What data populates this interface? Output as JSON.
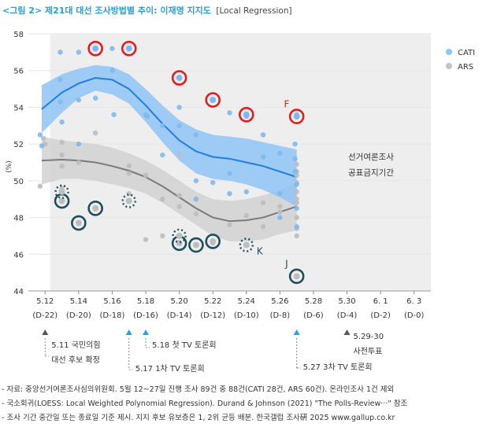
{
  "title": {
    "main": "<그림 2> 제21대 대선 조사방법별 추이: 이재명 지지도",
    "sub": "[Local Regression]"
  },
  "chart_data": {
    "type": "scatter",
    "ylabel": "(%)",
    "ylim": [
      44,
      58
    ],
    "yticks": [
      44,
      46,
      48,
      50,
      52,
      54,
      56,
      58
    ],
    "x_dates": [
      "5.12",
      "5.14",
      "5.16",
      "5.18",
      "5.20",
      "5.22",
      "5.24",
      "5.26",
      "5.28",
      "5.30",
      "6. 1",
      "6. 3"
    ],
    "x_dday": [
      "(D-22)",
      "(D-20)",
      "(D-18)",
      "(D-16)",
      "(D-14)",
      "(D-12)",
      "(D-10)",
      "(D-8)",
      "(D-6)",
      "(D-4)",
      "(D-2)",
      "(D-0)"
    ],
    "blackout": {
      "start_day": 12.3,
      "end_day": 35,
      "label_line1": "선거여론조사",
      "label_line2": "공표금지기간"
    },
    "legend": [
      {
        "name": "CATI",
        "color": "#8ec5f5"
      },
      {
        "name": "ARS",
        "color": "#c4c4c4"
      }
    ],
    "colors": {
      "cati_band": "#8fc3f7",
      "cati_line": "#1e7fe0",
      "ars_band": "#cfcfcf",
      "ars_line": "#7a7a7a",
      "red_circle": "#e11d1d",
      "teal_circle": "#1d4f5f"
    },
    "series": [
      {
        "name": "CATI",
        "points": [
          [
            11.7,
            52.5
          ],
          [
            11.8,
            51.9
          ],
          [
            12.9,
            57.0
          ],
          [
            12.9,
            55.5
          ],
          [
            12.9,
            54.3
          ],
          [
            13.0,
            53.2
          ],
          [
            14.0,
            57.0
          ],
          [
            14.0,
            54.4
          ],
          [
            14.0,
            52.0
          ],
          [
            15.0,
            57.2
          ],
          [
            15.0,
            54.5
          ],
          [
            16.0,
            57.2
          ],
          [
            16.0,
            56.0
          ],
          [
            16.1,
            53.6
          ],
          [
            18.0,
            53.6
          ],
          [
            18.1,
            53.5
          ],
          [
            19.0,
            53.0
          ],
          [
            19.0,
            51.4
          ],
          [
            20.0,
            55.6
          ],
          [
            20.0,
            54.0
          ],
          [
            20.0,
            53.0
          ],
          [
            21.0,
            52.5
          ],
          [
            21.0,
            50.0
          ],
          [
            21.0,
            49.0
          ],
          [
            22.0,
            54.4
          ],
          [
            22.0,
            49.9
          ],
          [
            23.0,
            53.7
          ],
          [
            23.0,
            50.4
          ],
          [
            23.0,
            49.3
          ],
          [
            24.0,
            53.6
          ],
          [
            24.0,
            53.5
          ],
          [
            24.0,
            49.4
          ],
          [
            25.0,
            52.5
          ],
          [
            25.0,
            51.3
          ],
          [
            26.0,
            51.5
          ],
          [
            26.0,
            49.3
          ],
          [
            26.0,
            48.0
          ],
          [
            26.9,
            52.0
          ],
          [
            26.9,
            51.2
          ],
          [
            26.9,
            50.5
          ],
          [
            27.0,
            53.6
          ],
          [
            27.0,
            49.8
          ],
          [
            27.0,
            48.5
          ],
          [
            27.0,
            47.5
          ]
        ],
        "smooth": [
          [
            11.8,
            53.9
          ],
          [
            13,
            54.8
          ],
          [
            14,
            55.3
          ],
          [
            15,
            55.6
          ],
          [
            16,
            55.5
          ],
          [
            17,
            55.0
          ],
          [
            18,
            54.1
          ],
          [
            19,
            53.1
          ],
          [
            20,
            52.2
          ],
          [
            21,
            51.6
          ],
          [
            22,
            51.3
          ],
          [
            23,
            51.2
          ],
          [
            24,
            51.0
          ],
          [
            25,
            50.8
          ],
          [
            26,
            50.5
          ],
          [
            27,
            50.2
          ]
        ],
        "band_upper": [
          [
            11.8,
            55.2
          ],
          [
            13,
            55.8
          ],
          [
            14,
            56.1
          ],
          [
            15,
            56.3
          ],
          [
            16,
            56.2
          ],
          [
            17,
            55.8
          ],
          [
            18,
            55.0
          ],
          [
            19,
            54.1
          ],
          [
            20,
            53.3
          ],
          [
            21,
            52.8
          ],
          [
            22,
            52.5
          ],
          [
            23,
            52.4
          ],
          [
            24,
            52.3
          ],
          [
            25,
            52.1
          ],
          [
            26,
            51.9
          ],
          [
            27,
            51.7
          ]
        ],
        "band_lower": [
          [
            11.8,
            52.6
          ],
          [
            13,
            53.7
          ],
          [
            14,
            54.5
          ],
          [
            15,
            54.9
          ],
          [
            16,
            54.7
          ],
          [
            17,
            54.2
          ],
          [
            18,
            53.2
          ],
          [
            19,
            52.1
          ],
          [
            20,
            51.1
          ],
          [
            21,
            50.4
          ],
          [
            22,
            50.1
          ],
          [
            23,
            50.0
          ],
          [
            24,
            49.8
          ],
          [
            25,
            49.5
          ],
          [
            26,
            49.1
          ],
          [
            27,
            48.6
          ]
        ]
      },
      {
        "name": "ARS",
        "points": [
          [
            11.7,
            49.7
          ],
          [
            11.9,
            52.3
          ],
          [
            12.0,
            52.0
          ],
          [
            13.0,
            52.1
          ],
          [
            13.0,
            51.4
          ],
          [
            13.0,
            50.8
          ],
          [
            13.0,
            49.6
          ],
          [
            13.0,
            49.3
          ],
          [
            14.0,
            51.0
          ],
          [
            15.0,
            52.6
          ],
          [
            15.0,
            48.5
          ],
          [
            17.0,
            50.8
          ],
          [
            17.0,
            50.4
          ],
          [
            17.0,
            49.3
          ],
          [
            18.0,
            50.3
          ],
          [
            18.0,
            46.8
          ],
          [
            19.0,
            47.0
          ],
          [
            19.0,
            49.0
          ],
          [
            20.0,
            51.4
          ],
          [
            20.0,
            49.2
          ],
          [
            20.0,
            48.6
          ],
          [
            20.0,
            47.0
          ],
          [
            20.0,
            46.6
          ],
          [
            21.0,
            46.5
          ],
          [
            21.0,
            48.2
          ],
          [
            22.0,
            46.6
          ],
          [
            23.0,
            47.6
          ],
          [
            24.0,
            48.1
          ],
          [
            24.0,
            46.5
          ],
          [
            25.0,
            47.5
          ],
          [
            25.0,
            48.8
          ],
          [
            26.0,
            48.6
          ],
          [
            26.0,
            48.3
          ],
          [
            27.0,
            50.9
          ],
          [
            27.0,
            50.5
          ],
          [
            27.0,
            50.3
          ],
          [
            27.0,
            49.9
          ],
          [
            27.0,
            49.4
          ],
          [
            27.0,
            49.0
          ],
          [
            27.0,
            48.8
          ],
          [
            27.0,
            48.0
          ],
          [
            27.0,
            47.4
          ],
          [
            27.0,
            47.0
          ]
        ],
        "smooth": [
          [
            11.8,
            51.1
          ],
          [
            13,
            51.15
          ],
          [
            14,
            51.1
          ],
          [
            15,
            51.0
          ],
          [
            16,
            50.8
          ],
          [
            17,
            50.55
          ],
          [
            18,
            50.2
          ],
          [
            19,
            49.7
          ],
          [
            20,
            49.1
          ],
          [
            21,
            48.5
          ],
          [
            22,
            48.0
          ],
          [
            23,
            47.8
          ],
          [
            24,
            47.85
          ],
          [
            25,
            48.0
          ],
          [
            26,
            48.3
          ],
          [
            27,
            48.6
          ]
        ],
        "band_upper": [
          [
            11.8,
            52.4
          ],
          [
            13,
            52.2
          ],
          [
            14,
            52.1
          ],
          [
            15,
            52.0
          ],
          [
            16,
            51.8
          ],
          [
            17,
            51.5
          ],
          [
            18,
            51.1
          ],
          [
            19,
            50.6
          ],
          [
            20,
            50.0
          ],
          [
            21,
            49.4
          ],
          [
            22,
            49.0
          ],
          [
            23,
            48.9
          ],
          [
            24,
            49.0
          ],
          [
            25,
            49.2
          ],
          [
            26,
            49.5
          ],
          [
            27,
            49.9
          ]
        ],
        "band_lower": [
          [
            11.8,
            49.8
          ],
          [
            13,
            50.1
          ],
          [
            14,
            50.1
          ],
          [
            15,
            50.0
          ],
          [
            16,
            49.8
          ],
          [
            17,
            49.6
          ],
          [
            18,
            49.3
          ],
          [
            19,
            48.8
          ],
          [
            20,
            48.2
          ],
          [
            21,
            47.6
          ],
          [
            22,
            47.0
          ],
          [
            23,
            46.7
          ],
          [
            24,
            46.7
          ],
          [
            25,
            46.8
          ],
          [
            26,
            47.1
          ],
          [
            27,
            47.3
          ]
        ]
      }
    ],
    "red_circles": [
      [
        15,
        57.2
      ],
      [
        17,
        57.2
      ],
      [
        20,
        55.6
      ],
      [
        22,
        54.4
      ],
      [
        24,
        53.6
      ],
      [
        27,
        53.5
      ]
    ],
    "teal_circles": [
      [
        13,
        48.9
      ],
      [
        14,
        47.7
      ],
      [
        15,
        48.5
      ],
      [
        20,
        46.6
      ],
      [
        21,
        46.5
      ],
      [
        22,
        46.7
      ],
      [
        27,
        44.8
      ]
    ],
    "dotted_circles": [
      [
        13,
        49.4
      ],
      [
        17,
        48.9
      ],
      [
        20,
        47.0
      ],
      [
        24,
        46.5
      ]
    ],
    "letters": [
      {
        "text": "F",
        "day": 26.4,
        "value": 54.0,
        "color": "#e11d1d"
      },
      {
        "text": "K",
        "day": 24.8,
        "value": 46.0,
        "color": "#1d4f5f"
      },
      {
        "text": "J",
        "day": 26.4,
        "value": 45.3,
        "color": "#1d4f5f"
      }
    ],
    "events": [
      {
        "day": 12,
        "marker": "triangle-gray",
        "lines": [
          "5.11 국민의힘",
          "대선 후보 확정"
        ]
      },
      {
        "day": 17,
        "marker": "triangle-blue",
        "lines": [
          "5.17 1차 TV 토론회"
        ]
      },
      {
        "day": 18,
        "marker": "triangle-blue",
        "lines": [
          "5.18 첫 TV 토론회"
        ]
      },
      {
        "day": 27,
        "marker": "triangle-blue",
        "lines": [
          "5.27 3차 TV 토론회"
        ]
      },
      {
        "day": 30,
        "marker": "triangle-gray",
        "lines": [
          "5.29-30",
          "사전투표"
        ]
      }
    ]
  },
  "notes": [
    "- 자료: 중앙선거여론조사심의위원회. 5월 12~27일 진행 조사 89건 중 88건(CATI 28건, ARS 60건). 온라인조사 1건 제외",
    "- 국소회귀(LOESS: Local Weighted Polynomial Regression). Durand & Johnson (2021) \"The Polls-Review···\" 참조",
    "- 조사 기간 중간일 또는 종료일 기준 제시. 지지 후보 유보층은 1, 2위 균등 배분. 한국갤럽 조사硏 2025 www.gallup.co.kr"
  ]
}
